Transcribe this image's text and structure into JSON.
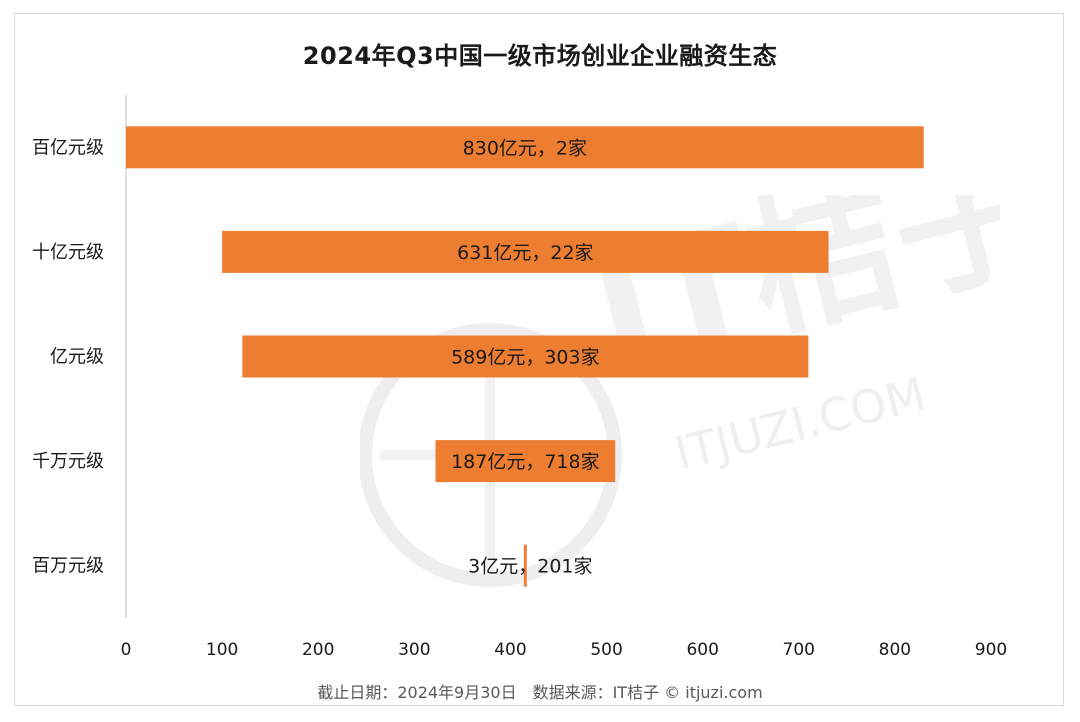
{
  "title": "2024年Q3中国一级市场创业企业融资生态",
  "footer": "截止日期：2024年9月30日　数据来源：IT桔子 © itjuzi.com",
  "watermark": {
    "brand": "IT桔子",
    "url": "ITJUZI.COM"
  },
  "colors": {
    "bar": "#ED7D31",
    "axis": "#bfbfbf",
    "text": "#1a1a1a"
  },
  "chart_data": {
    "type": "bar",
    "orientation": "horizontal",
    "subtype": "floating-funnel",
    "categories": [
      "百亿元级",
      "十亿元级",
      "亿元级",
      "千万元级",
      "百万元级"
    ],
    "bars": [
      {
        "category": "百亿元级",
        "start": 0,
        "end": 830,
        "value": 830,
        "label": "830亿元，2家"
      },
      {
        "category": "十亿元级",
        "start": 100,
        "end": 731,
        "value": 631,
        "label": "631亿元，22家"
      },
      {
        "category": "亿元级",
        "start": 121,
        "end": 710,
        "value": 589,
        "label": "589亿元，303家"
      },
      {
        "category": "千万元级",
        "start": 322,
        "end": 509,
        "value": 187,
        "label": "187亿元，718家"
      },
      {
        "category": "百万元级",
        "start": 414,
        "end": 417,
        "value": 3,
        "label": "3亿元，201家"
      }
    ],
    "xlim": [
      0,
      900
    ],
    "xticks": [
      "0",
      "100",
      "200",
      "300",
      "400",
      "500",
      "600",
      "700",
      "800",
      "900"
    ],
    "xlabel": "",
    "ylabel": "",
    "grid": false,
    "legend": "none"
  }
}
